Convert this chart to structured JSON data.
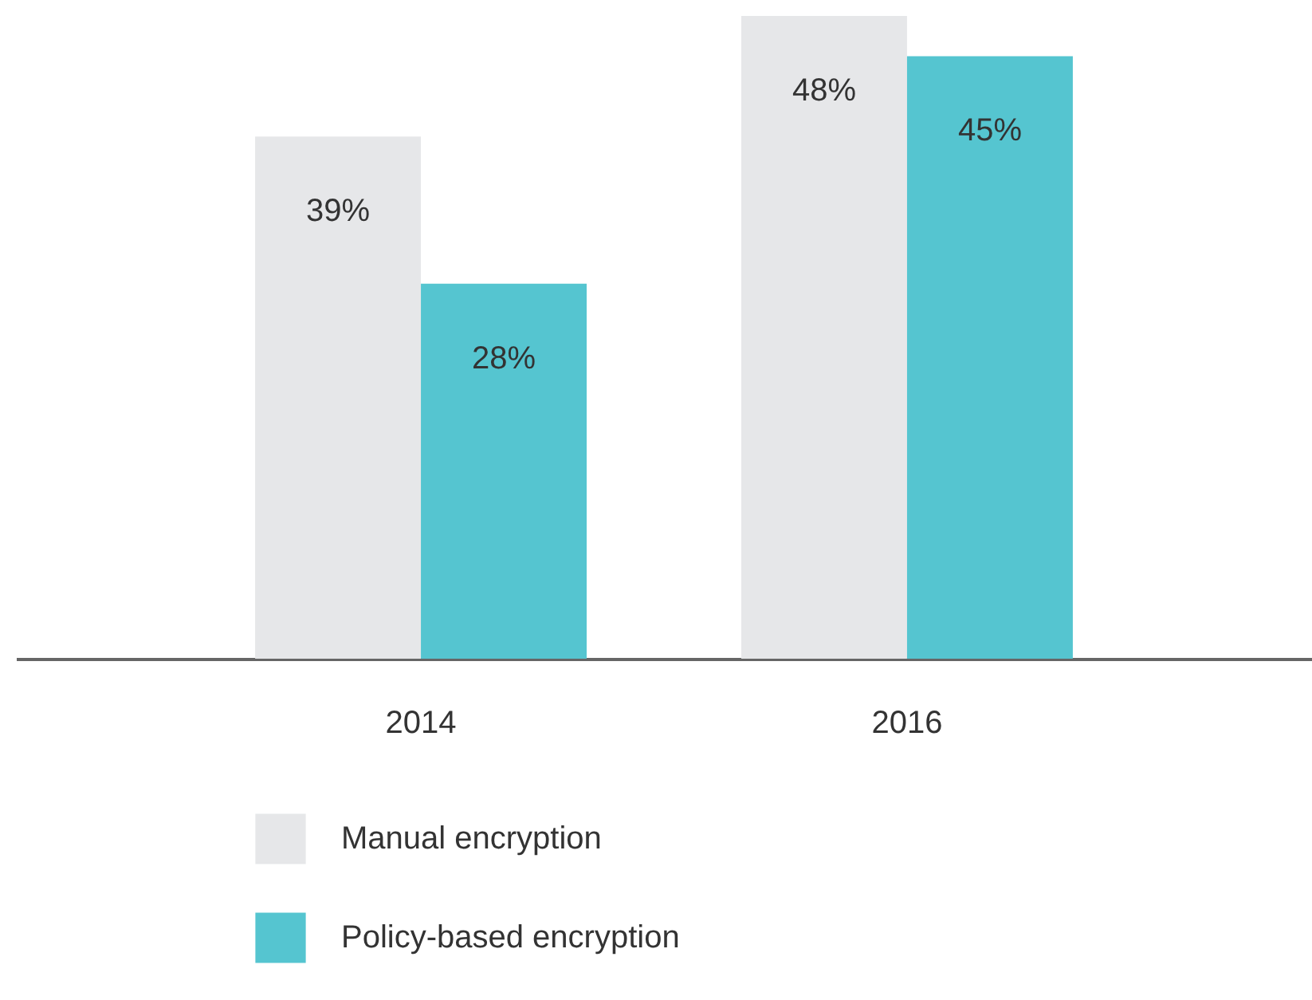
{
  "chart_data": {
    "type": "bar",
    "categories": [
      "2014",
      "2016"
    ],
    "series": [
      {
        "name": "Manual encryption",
        "color": "#e6e7e9",
        "values": [
          39,
          48
        ],
        "value_labels": [
          "39%",
          "48%"
        ]
      },
      {
        "name": "Policy-based encryption",
        "color": "#55c5d0",
        "values": [
          28,
          45
        ],
        "value_labels": [
          "28%",
          "45%"
        ]
      }
    ],
    "legend": "bottom",
    "grid": false
  }
}
